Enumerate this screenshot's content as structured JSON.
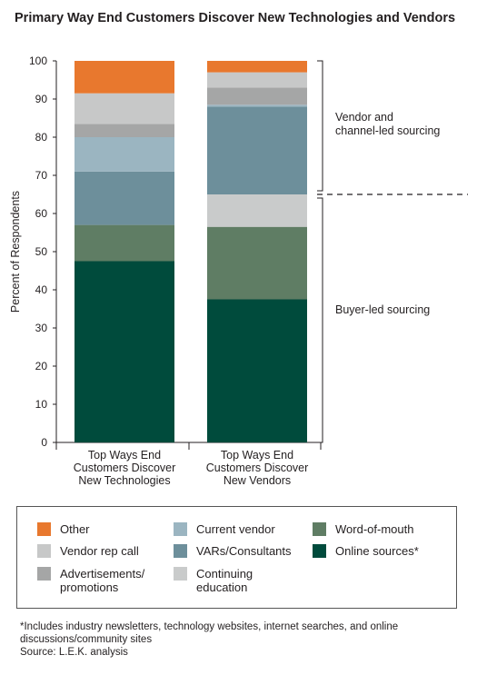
{
  "title": "Primary Way End Customers Discover New Technologies and Vendors",
  "chart_data": {
    "type": "bar",
    "stacked": true,
    "ylabel": "Percent of Respondents",
    "ylim": [
      0,
      100
    ],
    "yticks": [
      0,
      10,
      20,
      30,
      40,
      50,
      60,
      70,
      80,
      90,
      100
    ],
    "categories": [
      [
        "Top Ways End",
        "Customers Discover",
        "New Technologies"
      ],
      [
        "Top Ways End",
        "Customers Discover",
        "New Vendors"
      ]
    ],
    "series": [
      {
        "name": "Online sources*",
        "color": "#004b3c",
        "values": [
          47.5,
          37.5
        ]
      },
      {
        "name": "Word-of-mouth",
        "color": "#5f7d64",
        "values": [
          9.5,
          19
        ]
      },
      {
        "name": "Continuing education",
        "color": "#c9cbcb",
        "values": [
          0,
          8.5
        ]
      },
      {
        "name": "VARs/Consultants",
        "color": "#6d8f9b",
        "values": [
          14,
          23
        ]
      },
      {
        "name": "Current vendor",
        "color": "#9bb5c1",
        "values": [
          9,
          0.5
        ]
      },
      {
        "name": "Advertisements/ promotions",
        "color": "#a5a6a6",
        "values": [
          3.5,
          4.5
        ]
      },
      {
        "name": "Vendor rep call",
        "color": "#c7c8c8",
        "values": [
          8,
          4
        ]
      },
      {
        "name": "Other",
        "color": "#e8782e",
        "values": [
          8.5,
          3
        ]
      }
    ],
    "annotations": [
      {
        "text": [
          "Vendor and",
          "channel-led sourcing"
        ],
        "range": [
          65,
          100
        ]
      },
      {
        "text": [
          "Buyer-led sourcing"
        ],
        "range": [
          0,
          65
        ]
      }
    ]
  },
  "legend": [
    {
      "label": "Other",
      "color": "#e8782e"
    },
    {
      "label": "Vendor rep call",
      "color": "#c7c8c8"
    },
    {
      "label": "Advertisements/\npromotions",
      "color": "#a5a6a6"
    },
    {
      "label": "Current vendor",
      "color": "#9bb5c1"
    },
    {
      "label": "VARs/Consultants",
      "color": "#6d8f9b"
    },
    {
      "label": "Continuing\neducation",
      "color": "#c9cbcb"
    },
    {
      "label": "Word-of-mouth",
      "color": "#5f7d64"
    },
    {
      "label": "Online sources*",
      "color": "#004b3c"
    }
  ],
  "footnote": "*Includes industry newsletters, technology websites, internet searches, and online discussions/community sites",
  "source": "Source:  L.E.K. analysis"
}
